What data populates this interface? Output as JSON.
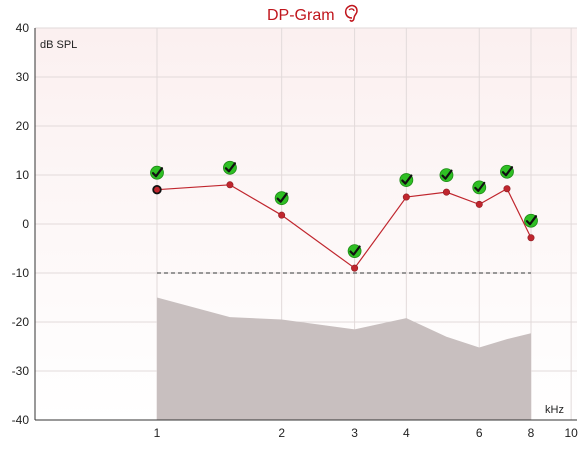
{
  "chart_data": {
    "type": "line",
    "title": "DP-Gram",
    "title_icon": "right-ear-icon",
    "ylabel": "dB SPL",
    "xlabel": "kHz",
    "x_scale": "log",
    "ylim": [
      -40,
      40
    ],
    "y_ticks": [
      40,
      30,
      20,
      10,
      0,
      -10,
      -20,
      -30,
      -40
    ],
    "x_tick_labels": [
      {
        "value": 1,
        "label": "1"
      },
      {
        "value": 2,
        "label": "2"
      },
      {
        "value": 3,
        "label": "3"
      },
      {
        "value": 4,
        "label": "4"
      },
      {
        "value": 6,
        "label": "6"
      },
      {
        "value": 8,
        "label": "8"
      },
      {
        "value": 10,
        "label": "10"
      }
    ],
    "grid": true,
    "series": [
      {
        "role": "dp_response",
        "color": "#c0262e",
        "points": [
          {
            "x": 1.0,
            "y": 7.0
          },
          {
            "x": 1.5,
            "y": 8.0
          },
          {
            "x": 2.0,
            "y": 1.8
          },
          {
            "x": 3.0,
            "y": -9.0
          },
          {
            "x": 4.0,
            "y": 5.5
          },
          {
            "x": 5.0,
            "y": 6.5
          },
          {
            "x": 6.0,
            "y": 4.0
          },
          {
            "x": 7.0,
            "y": 7.2
          },
          {
            "x": 8.0,
            "y": -2.8
          }
        ]
      },
      {
        "role": "noise_floor",
        "color": "#c8bfbf",
        "points": [
          {
            "x": 1.0,
            "y": -15.0
          },
          {
            "x": 1.5,
            "y": -19.0
          },
          {
            "x": 2.0,
            "y": -19.5
          },
          {
            "x": 3.0,
            "y": -21.5
          },
          {
            "x": 4.0,
            "y": -19.2
          },
          {
            "x": 5.0,
            "y": -23.0
          },
          {
            "x": 6.0,
            "y": -25.2
          },
          {
            "x": 7.0,
            "y": -23.5
          },
          {
            "x": 8.0,
            "y": -22.3
          }
        ]
      },
      {
        "role": "pass_criterion",
        "color": "#777777",
        "points": [
          {
            "x": 1.0,
            "y": -10.0
          },
          {
            "x": 8.0,
            "y": -10.0
          }
        ]
      }
    ],
    "pass_markers": [
      1.0,
      1.5,
      2.0,
      3.0,
      4.0,
      5.0,
      6.0,
      7.0,
      8.0
    ],
    "pass_marker_icon": "checkmark-icon",
    "pass_marker_color": "#2fbf24",
    "highlighted_point_x": 1.0
  }
}
